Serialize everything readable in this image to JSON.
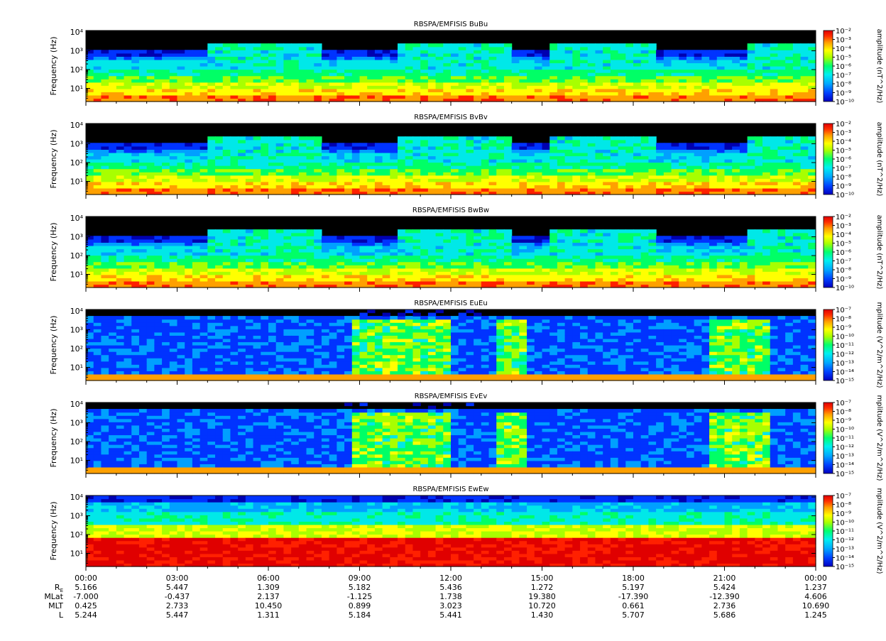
{
  "chart_data": [
    {
      "type": "heatmap",
      "title": "RBSPA/EMFISIS  BuBu",
      "ylabel": "Frequency (Hz)",
      "yscale": "log",
      "ylim": [
        2,
        12000
      ],
      "ytick_labels": [
        "10¹",
        "10²",
        "10³",
        "10⁴"
      ],
      "colorbar_label": "amplitude (nT^2/Hz)",
      "colorbar_scale": "log",
      "colorbar_ticks": [
        "10⁻²",
        "10⁻³",
        "10⁻⁴",
        "10⁻⁵",
        "10⁻⁶",
        "10⁻⁷",
        "10⁻⁸",
        "10⁻⁹",
        "10⁻¹⁰"
      ],
      "colorbar_range": [
        "1e-10",
        "1e-2"
      ]
    },
    {
      "type": "heatmap",
      "title": "RBSPA/EMFISIS  BvBv",
      "ylabel": "Frequency (Hz)",
      "yscale": "log",
      "ylim": [
        2,
        12000
      ],
      "ytick_labels": [
        "10¹",
        "10²",
        "10³",
        "10⁴"
      ],
      "colorbar_label": "amplitude (nT^2/Hz)",
      "colorbar_scale": "log",
      "colorbar_ticks": [
        "10⁻²",
        "10⁻³",
        "10⁻⁴",
        "10⁻⁵",
        "10⁻⁶",
        "10⁻⁷",
        "10⁻⁸",
        "10⁻⁹",
        "10⁻¹⁰"
      ],
      "colorbar_range": [
        "1e-10",
        "1e-2"
      ]
    },
    {
      "type": "heatmap",
      "title": "RBSPA/EMFISIS  BwBw",
      "ylabel": "Frequency (Hz)",
      "yscale": "log",
      "ylim": [
        2,
        12000
      ],
      "ytick_labels": [
        "10¹",
        "10²",
        "10³",
        "10⁴"
      ],
      "colorbar_label": "amplitude (nT^2/Hz)",
      "colorbar_scale": "log",
      "colorbar_ticks": [
        "10⁻²",
        "10⁻³",
        "10⁻⁴",
        "10⁻⁵",
        "10⁻⁶",
        "10⁻⁷",
        "10⁻⁸",
        "10⁻⁹",
        "10⁻¹⁰"
      ],
      "colorbar_range": [
        "1e-10",
        "1e-2"
      ]
    },
    {
      "type": "heatmap",
      "title": "RBSPA/EMFISIS  EuEu",
      "ylabel": "Frequency (Hz)",
      "yscale": "log",
      "ylim": [
        2,
        12000
      ],
      "ytick_labels": [
        "10¹",
        "10²",
        "10³",
        "10⁴"
      ],
      "colorbar_label": "mplitude (V^2/m^2/Hz)",
      "colorbar_scale": "log",
      "colorbar_ticks": [
        "10⁻⁷",
        "10⁻⁸",
        "10⁻⁹",
        "10⁻¹⁰",
        "10⁻¹¹",
        "10⁻¹²",
        "10⁻¹³",
        "10⁻¹⁴",
        "10⁻¹⁵"
      ],
      "colorbar_range": [
        "1e-15",
        "1e-7"
      ]
    },
    {
      "type": "heatmap",
      "title": "RBSPA/EMFISIS  EvEv",
      "ylabel": "Frequency (Hz)",
      "yscale": "log",
      "ylim": [
        2,
        12000
      ],
      "ytick_labels": [
        "10¹",
        "10²",
        "10³",
        "10⁴"
      ],
      "colorbar_label": "mplitude (V^2/m^2/Hz)",
      "colorbar_scale": "log",
      "colorbar_ticks": [
        "10⁻⁷",
        "10⁻⁸",
        "10⁻⁹",
        "10⁻¹⁰",
        "10⁻¹¹",
        "10⁻¹²",
        "10⁻¹³",
        "10⁻¹⁴",
        "10⁻¹⁵"
      ],
      "colorbar_range": [
        "1e-15",
        "1e-7"
      ]
    },
    {
      "type": "heatmap",
      "title": "RBSPA/EMFISIS  EwEw",
      "ylabel": "Frequency (Hz)",
      "yscale": "log",
      "ylim": [
        2,
        12000
      ],
      "ytick_labels": [
        "10¹",
        "10²",
        "10³",
        "10⁴"
      ],
      "colorbar_label": "mplitude (V^2/m^2/Hz)",
      "colorbar_scale": "log",
      "colorbar_ticks": [
        "10⁻⁷",
        "10⁻⁸",
        "10⁻⁹",
        "10⁻¹⁰",
        "10⁻¹¹",
        "10⁻¹²",
        "10⁻¹³",
        "10⁻¹⁴",
        "10⁻¹⁵"
      ],
      "colorbar_range": [
        "1e-15",
        "1e-7"
      ]
    }
  ],
  "x_axis": {
    "tick_labels": [
      "00:00",
      "03:00",
      "06:00",
      "09:00",
      "12:00",
      "15:00",
      "18:00",
      "21:00",
      "00:00"
    ],
    "rows": [
      {
        "label": "R",
        "sub": "E",
        "values": [
          "5.166",
          "5.447",
          "1.309",
          "5.182",
          "5.436",
          "1.272",
          "5.197",
          "5.424",
          "1.237"
        ]
      },
      {
        "label": "MLat",
        "sub": "",
        "values": [
          "-7.000",
          "-0.437",
          "2.137",
          "-1.125",
          "1.738",
          "19.380",
          "-17.390",
          "-12.390",
          "4.606"
        ]
      },
      {
        "label": "MLT",
        "sub": "",
        "values": [
          "0.425",
          "2.733",
          "10.450",
          "0.899",
          "3.023",
          "10.720",
          "0.661",
          "2.736",
          "10.690"
        ]
      },
      {
        "label": "L",
        "sub": "",
        "values": [
          "5.244",
          "5.447",
          "1.311",
          "5.184",
          "5.441",
          "1.430",
          "5.707",
          "5.686",
          "1.245"
        ]
      }
    ]
  },
  "colors": {
    "background": "#000000",
    "scale": [
      "#0000b0",
      "#0033ff",
      "#00a0ff",
      "#00e8e8",
      "#00ff66",
      "#a8ff00",
      "#ffff00",
      "#ffa000",
      "#ff2000",
      "#e00000"
    ]
  }
}
